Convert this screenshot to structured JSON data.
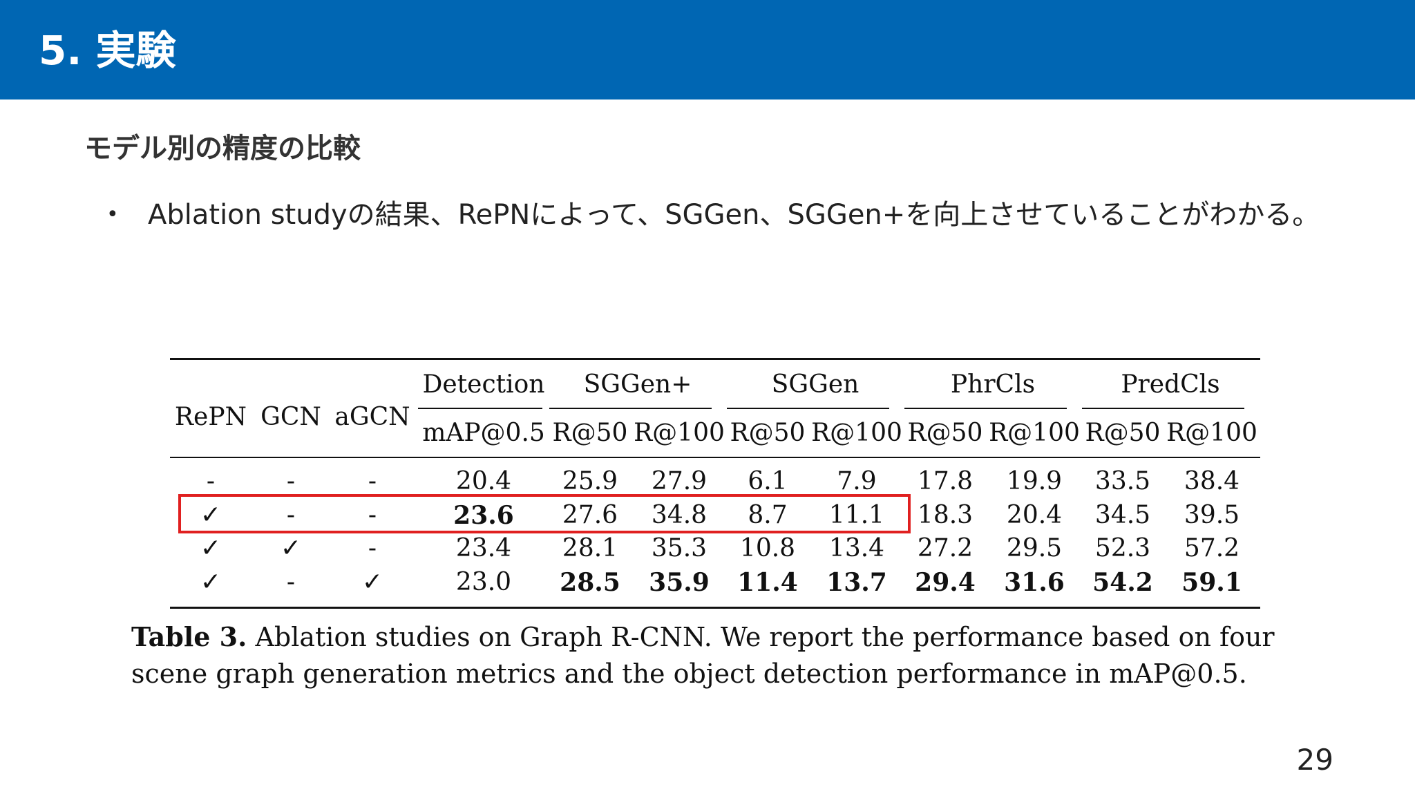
{
  "slide": {
    "title": "5. 実験",
    "heading": "モデル別の精度の比較",
    "bullet_symbol": "•",
    "bullet_text": "Ablation studyの結果、RePNによって、SGGen、SGGen+を向上させていることがわかる。",
    "page_number": "29",
    "header_color": "#0066b3"
  },
  "table": {
    "group_headers": [
      "Detection",
      "SGGen+",
      "SGGen",
      "PhrCls",
      "PredCls"
    ],
    "row_header_labels": [
      "RePN",
      "GCN",
      "aGCN"
    ],
    "metric_headers": [
      "mAP@0.5",
      "R@50",
      "R@100",
      "R@50",
      "R@100",
      "R@50",
      "R@100",
      "R@50",
      "R@100"
    ],
    "rows": [
      {
        "flags": [
          "-",
          "-",
          "-"
        ],
        "values": [
          "20.4",
          "25.9",
          "27.9",
          "6.1",
          "7.9",
          "17.8",
          "19.9",
          "33.5",
          "38.4"
        ],
        "bold": [
          false,
          false,
          false,
          false,
          false,
          false,
          false,
          false,
          false
        ]
      },
      {
        "flags": [
          "✓",
          "-",
          "-"
        ],
        "values": [
          "23.6",
          "27.6",
          "34.8",
          "8.7",
          "11.1",
          "18.3",
          "20.4",
          "34.5",
          "39.5"
        ],
        "bold": [
          true,
          false,
          false,
          false,
          false,
          false,
          false,
          false,
          false
        ]
      },
      {
        "flags": [
          "✓",
          "✓",
          "-"
        ],
        "values": [
          "23.4",
          "28.1",
          "35.3",
          "10.8",
          "13.4",
          "27.2",
          "29.5",
          "52.3",
          "57.2"
        ],
        "bold": [
          false,
          false,
          false,
          false,
          false,
          false,
          false,
          false,
          false
        ]
      },
      {
        "flags": [
          "✓",
          "-",
          "✓"
        ],
        "values": [
          "23.0",
          "28.5",
          "35.9",
          "11.4",
          "13.7",
          "29.4",
          "31.6",
          "54.2",
          "59.1"
        ],
        "bold": [
          false,
          true,
          true,
          true,
          true,
          true,
          true,
          true,
          true
        ]
      }
    ],
    "highlight_color": "#e02020",
    "caption_label": "Table 3.",
    "caption_line1": " Ablation studies on Graph R-CNN. We report the performance based on four",
    "caption_line2": "scene graph generation metrics and the object detection performance in mAP@0.5."
  }
}
